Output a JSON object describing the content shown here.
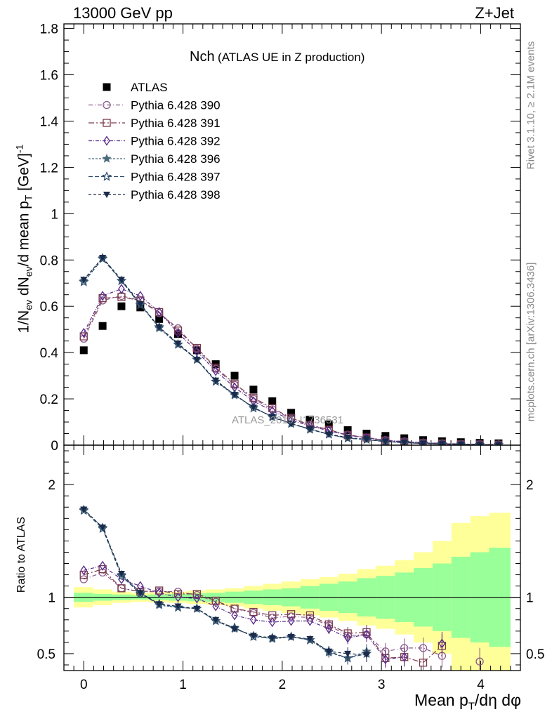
{
  "header": {
    "left": "13000 GeV pp",
    "right": "Z+Jet"
  },
  "side_labels": {
    "rivet": "Rivet 3.1.10, ≥ 2.1M events",
    "mcplots": "mcplots.cern.ch [arXiv:1306.3436]"
  },
  "watermark": "ATLAS_2019_I1736531",
  "chart_data": [
    {
      "type": "scatter",
      "title": "Nch",
      "subtitle": "(ATLAS UE in Z production)",
      "ylabel": "1/N_ev dN_ev/d mean p_T [GeV]^-1",
      "xlim": [
        -0.2,
        4.4
      ],
      "ylim": [
        0,
        1.82
      ],
      "yticks": [
        0,
        0.2,
        0.4,
        0.6,
        0.8,
        1,
        1.2,
        1.4,
        1.6,
        1.8
      ],
      "ytick_labels": [
        "0",
        "0.2",
        "0.4",
        "0.6",
        "0.8",
        "1",
        "1.2",
        "1.4",
        "1.6",
        "1.8"
      ],
      "legend_position": "top-left",
      "x": [
        0,
        0.19,
        0.38,
        0.57,
        0.76,
        0.95,
        1.14,
        1.33,
        1.52,
        1.71,
        1.9,
        2.09,
        2.28,
        2.47,
        2.66,
        2.85,
        3.04,
        3.23,
        3.42,
        3.61,
        3.8,
        3.99,
        4.18
      ],
      "series": [
        {
          "name": "ATLAS",
          "color": "#000000",
          "marker": "filled-square",
          "values": [
            0.41,
            0.515,
            0.6,
            0.595,
            0.545,
            0.48,
            0.41,
            0.35,
            0.3,
            0.24,
            0.19,
            0.14,
            0.11,
            0.09,
            0.065,
            0.05,
            0.04,
            0.03,
            0.022,
            0.017,
            0.013,
            0.01,
            0.008
          ]
        },
        {
          "name": "Pythia 6.428 390",
          "color": "#8a5a8a",
          "marker": "open-circle",
          "values": [
            0.46,
            0.625,
            0.645,
            0.625,
            0.57,
            0.505,
            0.415,
            0.33,
            0.26,
            0.2,
            0.155,
            0.115,
            0.085,
            0.065,
            0.045,
            0.033,
            0.022,
            0.016,
            0.011,
            0.008,
            0.005,
            0.004,
            0.003
          ]
        },
        {
          "name": "Pythia 6.428 391",
          "color": "#7a3a4a",
          "marker": "open-square",
          "values": [
            0.47,
            0.635,
            0.64,
            0.625,
            0.575,
            0.495,
            0.42,
            0.335,
            0.265,
            0.205,
            0.16,
            0.118,
            0.088,
            0.067,
            0.043,
            0.033,
            0.02,
            0.014,
            0.009,
            0.007,
            0.004,
            0.003,
            0.002
          ]
        },
        {
          "name": "Pythia 6.428 392",
          "color": "#5a2a8a",
          "marker": "open-diamond",
          "values": [
            0.485,
            0.645,
            0.675,
            0.645,
            0.575,
            0.485,
            0.405,
            0.32,
            0.25,
            0.19,
            0.148,
            0.108,
            0.083,
            0.062,
            0.043,
            0.032,
            0.02,
            0.015,
            0.01,
            0.007,
            0.004,
            0.003,
            0.002
          ]
        },
        {
          "name": "Pythia 6.428 396",
          "color": "#4a6a7a",
          "marker": "filled-star",
          "values": [
            0.71,
            0.81,
            0.71,
            0.61,
            0.505,
            0.435,
            0.37,
            0.275,
            0.215,
            0.165,
            0.12,
            0.093,
            0.07,
            0.046,
            0.03,
            0.025,
            0.016,
            0.012,
            0.008,
            0.005,
            0.003,
            0.002,
            0.001
          ]
        },
        {
          "name": "Pythia 6.428 397",
          "color": "#2a4a6a",
          "marker": "open-star",
          "values": [
            0.705,
            0.805,
            0.71,
            0.605,
            0.51,
            0.435,
            0.37,
            0.275,
            0.22,
            0.16,
            0.125,
            0.093,
            0.068,
            0.047,
            0.03,
            0.024,
            0.015,
            0.011,
            0.007,
            0.005,
            0.003,
            0.002,
            0.001
          ]
        },
        {
          "name": "Pythia 6.428 398",
          "color": "#1a2a4a",
          "marker": "filled-triangle-down",
          "values": [
            0.715,
            0.81,
            0.715,
            0.61,
            0.51,
            0.44,
            0.37,
            0.28,
            0.218,
            0.163,
            0.123,
            0.092,
            0.07,
            0.047,
            0.033,
            0.025,
            0.016,
            0.011,
            0.007,
            0.005,
            0.003,
            0.002,
            0.001
          ]
        }
      ]
    },
    {
      "type": "scatter",
      "xlabel": "Mean p_T/dη dφ",
      "ylabel": "Ratio to ATLAS",
      "xlim": [
        -0.2,
        4.4
      ],
      "ylim": [
        0.35,
        2.35
      ],
      "yticks": [
        0.5,
        1,
        2
      ],
      "ytick_labels": [
        "0.5",
        "1",
        "2"
      ],
      "xticks": [
        0,
        1,
        2,
        3,
        4
      ],
      "xtick_labels": [
        "0",
        "1",
        "2",
        "3",
        "4"
      ],
      "uncertainty_bands": {
        "x_edges": [
          -0.1,
          0.095,
          0.285,
          0.475,
          0.665,
          0.855,
          1.045,
          1.235,
          1.425,
          1.615,
          1.805,
          1.995,
          2.185,
          2.375,
          2.565,
          2.755,
          2.945,
          3.135,
          3.325,
          3.515,
          3.705,
          3.895,
          4.085,
          4.3
        ],
        "stat": [
          0.04,
          0.03,
          0.025,
          0.02,
          0.025,
          0.03,
          0.035,
          0.04,
          0.05,
          0.06,
          0.07,
          0.08,
          0.1,
          0.12,
          0.14,
          0.17,
          0.19,
          0.22,
          0.26,
          0.3,
          0.36,
          0.4,
          0.44
        ],
        "total": [
          0.09,
          0.07,
          0.05,
          0.04,
          0.045,
          0.05,
          0.06,
          0.07,
          0.08,
          0.1,
          0.12,
          0.14,
          0.16,
          0.18,
          0.21,
          0.25,
          0.28,
          0.33,
          0.4,
          0.5,
          0.66,
          0.72,
          0.75
        ],
        "stat_color": "#99ff99",
        "total_color": "#ffff99"
      },
      "reference_line": 1,
      "series": [
        {
          "name": "Pythia 6.428 390",
          "values": [
            1.16,
            1.22,
            1.08,
            1.05,
            1.05,
            1.05,
            1.02,
            0.96,
            0.9,
            0.86,
            0.82,
            0.83,
            0.82,
            0.75,
            0.66,
            0.67,
            0.52,
            0.55,
            0.55,
            0.48,
            null,
            0.43,
            null
          ]
        },
        {
          "name": "Pythia 6.428 391",
          "values": [
            1.2,
            1.25,
            1.08,
            1.05,
            1.06,
            1.03,
            1.03,
            0.97,
            0.9,
            0.87,
            0.84,
            0.85,
            0.84,
            0.76,
            0.68,
            0.69,
            0.46,
            0.47,
            0.42,
            0.57,
            null,
            null,
            null
          ]
        },
        {
          "name": "Pythia 6.428 392",
          "values": [
            1.24,
            1.28,
            1.16,
            1.1,
            1.04,
            1.0,
            0.99,
            0.92,
            0.84,
            0.8,
            0.78,
            0.79,
            0.79,
            0.72,
            0.64,
            0.67,
            0.45,
            0.47,
            null,
            0.59,
            null,
            null,
            null
          ]
        },
        {
          "name": "Pythia 6.428 396",
          "values": [
            1.78,
            1.62,
            1.2,
            1.04,
            0.93,
            0.91,
            0.9,
            0.79,
            0.72,
            0.66,
            0.63,
            0.65,
            0.62,
            0.51,
            0.46,
            0.52,
            null,
            null,
            null,
            null,
            null,
            null,
            null
          ]
        },
        {
          "name": "Pythia 6.428 397",
          "values": [
            1.77,
            1.61,
            1.19,
            1.03,
            0.94,
            0.91,
            0.9,
            0.79,
            0.73,
            0.65,
            0.64,
            0.65,
            0.62,
            0.52,
            0.46,
            0.5,
            null,
            null,
            null,
            null,
            null,
            null,
            null
          ]
        },
        {
          "name": "Pythia 6.428 398",
          "values": [
            1.78,
            1.62,
            1.21,
            1.04,
            0.94,
            0.92,
            0.9,
            0.8,
            0.72,
            0.66,
            0.64,
            0.65,
            0.63,
            0.52,
            0.5,
            0.49,
            null,
            null,
            null,
            null,
            null,
            null,
            null
          ]
        }
      ]
    }
  ]
}
